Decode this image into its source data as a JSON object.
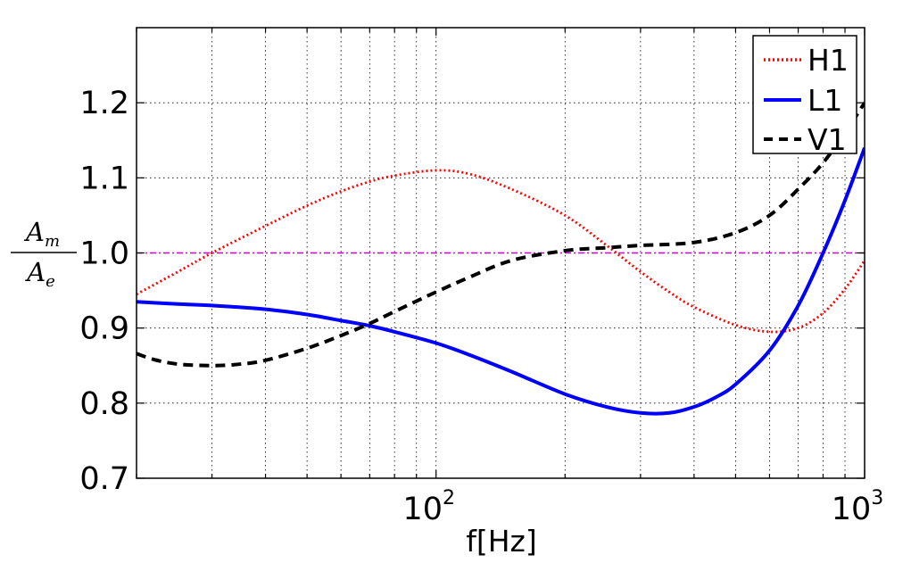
{
  "chart_data": {
    "type": "line",
    "xscale": "log",
    "xlim": [
      20,
      1000
    ],
    "ylim": [
      0.7,
      1.3
    ],
    "xlabel": "f[Hz]",
    "ylabel": {
      "numerator": "A",
      "numerator_sub": "m",
      "denominator": "A",
      "denominator_sub": "e"
    },
    "yticks": [
      0.7,
      0.8,
      0.9,
      1.0,
      1.1,
      1.2
    ],
    "ytick_labels": [
      "0.7",
      "0.8",
      "0.9",
      "1.0",
      "1.1",
      "1.2"
    ],
    "xticks": [
      {
        "value": 100,
        "base": "10",
        "exp": "2"
      },
      {
        "value": 1000,
        "base": "10",
        "exp": "3"
      }
    ],
    "grid": true,
    "legend_position": "top-right",
    "reference_line": {
      "y": 1.0,
      "color": "#cc00cc"
    },
    "series": [
      {
        "name": "H1",
        "color": "#ff0000",
        "style": "dotted",
        "x": [
          20,
          25,
          30,
          40,
          50,
          60,
          70,
          80,
          100,
          120,
          150,
          200,
          250,
          300,
          350,
          400,
          500,
          600,
          700,
          800,
          900,
          1000
        ],
        "y": [
          0.945,
          0.975,
          1.0,
          1.036,
          1.063,
          1.082,
          1.095,
          1.103,
          1.11,
          1.105,
          1.085,
          1.05,
          1.01,
          0.975,
          0.948,
          0.928,
          0.904,
          0.895,
          0.9,
          0.92,
          0.952,
          0.99
        ]
      },
      {
        "name": "L1",
        "color": "#0000ff",
        "style": "solid",
        "x": [
          20,
          25,
          30,
          40,
          50,
          60,
          70,
          80,
          100,
          120,
          150,
          200,
          250,
          300,
          350,
          400,
          450,
          500,
          600,
          700,
          800,
          900,
          1000
        ],
        "y": [
          0.935,
          0.932,
          0.93,
          0.925,
          0.918,
          0.91,
          0.903,
          0.895,
          0.88,
          0.864,
          0.842,
          0.812,
          0.795,
          0.787,
          0.787,
          0.795,
          0.808,
          0.825,
          0.87,
          0.93,
          1.0,
          1.07,
          1.14
        ]
      },
      {
        "name": "V1",
        "color": "#000000",
        "style": "dashed",
        "x": [
          20,
          22,
          25,
          30,
          35,
          40,
          50,
          60,
          70,
          80,
          100,
          120,
          150,
          200,
          250,
          300,
          400,
          500,
          600,
          700,
          800,
          900,
          1000
        ],
        "y": [
          0.866,
          0.858,
          0.852,
          0.85,
          0.852,
          0.857,
          0.873,
          0.89,
          0.906,
          0.922,
          0.948,
          0.968,
          0.99,
          1.003,
          1.007,
          1.01,
          1.014,
          1.027,
          1.05,
          1.085,
          1.12,
          1.16,
          1.2
        ]
      }
    ]
  }
}
